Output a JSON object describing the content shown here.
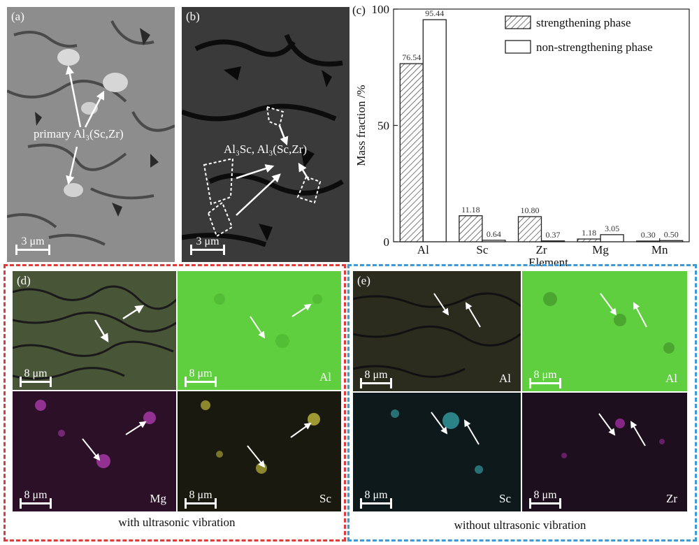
{
  "panels": {
    "a": {
      "label": "(a)",
      "annotation": "primary Al₃(Sc,Zr)",
      "scale": "3 μm"
    },
    "b": {
      "label": "(b)",
      "annotation": "Al₃Sc, Al₃(Sc,Zr)",
      "scale": "3 μm"
    },
    "c": {
      "label": "(c)"
    },
    "d": {
      "label": "(d)",
      "caption": "with ultrasonic vibration",
      "tiles": [
        {
          "element": "",
          "scale": "8 μm"
        },
        {
          "element": "Al",
          "scale": "8 μm"
        },
        {
          "element": "Mg",
          "scale": "8 μm"
        },
        {
          "element": "Sc",
          "scale": "8 μm"
        }
      ]
    },
    "e": {
      "label": "(e)",
      "caption": "without ultrasonic vibration",
      "tiles": [
        {
          "element": "Al",
          "scale": "8 μm"
        },
        {
          "element": "Al",
          "scale": "8 μm"
        },
        {
          "element": "Sc",
          "scale": "8 μm"
        },
        {
          "element": "Zr",
          "scale": "8 μm"
        }
      ]
    }
  },
  "colors": {
    "box_d": "#e03a3a",
    "box_e": "#3d9ad6",
    "al_map": "#5ccc3c",
    "mg_map": "#c040c0",
    "sc_map_d": "#d8d040",
    "sc_map_e": "#40c8d0",
    "zr_map": "#b030b0"
  },
  "chart_data": {
    "type": "bar",
    "categories": [
      "Al",
      "Sc",
      "Zr",
      "Mg",
      "Mn"
    ],
    "series": [
      {
        "name": "strengthening phase",
        "values": [
          76.54,
          11.18,
          10.8,
          1.18,
          0.3
        ],
        "labels": [
          "76.54",
          "11.18",
          "10.80",
          "1.18",
          "0.30"
        ]
      },
      {
        "name": "non-strengthening phase",
        "values": [
          95.44,
          0.64,
          0.37,
          3.05,
          0.5
        ],
        "labels": [
          "95.44",
          "0.64",
          "0.37",
          "3.05",
          "0.50"
        ]
      }
    ],
    "xlabel": "Element",
    "ylabel": "Mass fraction /%",
    "ylim": [
      0,
      100
    ],
    "yticks": [
      "0",
      "50",
      "100"
    ],
    "legend_position": "top-right"
  }
}
